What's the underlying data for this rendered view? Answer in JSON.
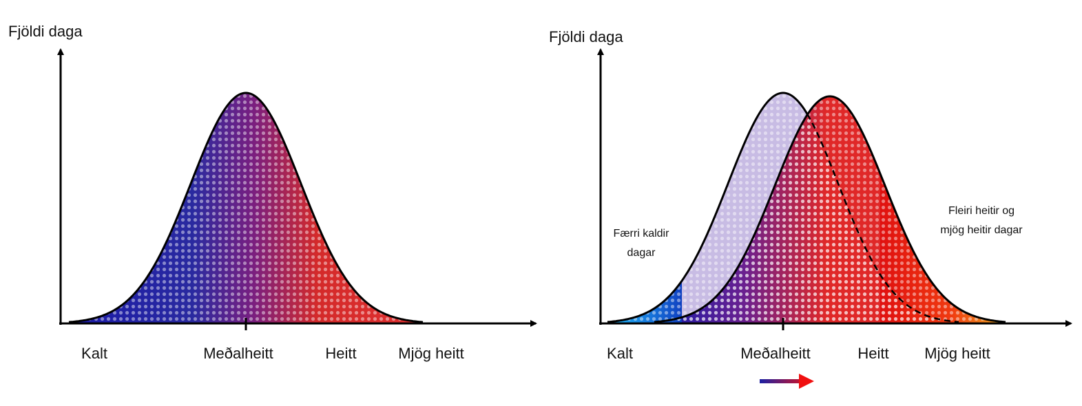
{
  "left": {
    "y_axis_label": "Fjöldi daga",
    "x_labels": [
      "Kalt",
      "Meðalheitt",
      "Heitt",
      "Mjög heitt"
    ]
  },
  "right": {
    "y_axis_label": "Fjöldi daga",
    "x_labels": [
      "Kalt",
      "Meðalheitt",
      "Heitt",
      "Mjög heitt"
    ],
    "annotations": [
      [
        "Færri kaldir",
        "dagar"
      ],
      [
        "Fleiri heitir og",
        "mjög heitir dagar"
      ]
    ]
  }
}
